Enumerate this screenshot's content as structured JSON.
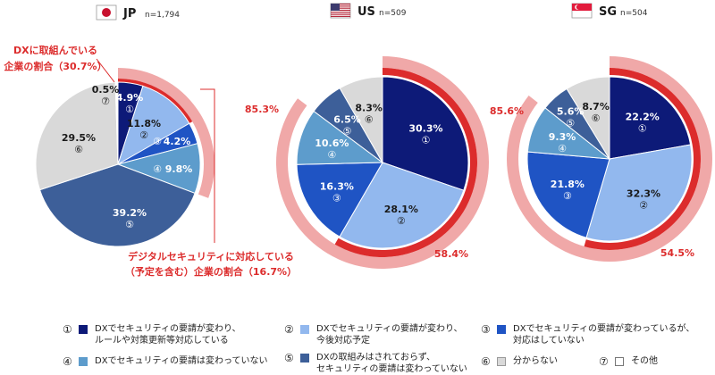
{
  "chart_data": [
    {
      "type": "pie",
      "country_code": "JP",
      "n_label": "n=1,794",
      "flag": "jp",
      "slices": [
        {
          "id": "1",
          "value": 4.9,
          "label": "4.9%",
          "num": "①"
        },
        {
          "id": "2",
          "value": 11.8,
          "label": "11.8%",
          "num": "②"
        },
        {
          "id": "3",
          "value": 4.2,
          "label": "4.2%",
          "num": "③"
        },
        {
          "id": "4",
          "value": 9.8,
          "label": "9.8%",
          "num": "④"
        },
        {
          "id": "5",
          "value": 39.2,
          "label": "39.2%",
          "num": "⑤"
        },
        {
          "id": "6",
          "value": 29.5,
          "label": "29.5%",
          "num": "⑥"
        },
        {
          "id": "7",
          "value": 0.5,
          "label": "0.5%",
          "num": "⑦"
        }
      ],
      "outer_arc": {
        "value": 30.7
      },
      "inner_arc": {
        "value": 16.7
      },
      "callout_outer": {
        "line1": "DXに取組んでいる",
        "line2": "企業の割合（30.7%）"
      },
      "callout_inner": {
        "line1": "デジタルセキュリティに対応している",
        "line2": "（予定を含む）企業の割合（16.7%）"
      }
    },
    {
      "type": "pie",
      "country_code": "US",
      "n_label": "n=509",
      "flag": "us",
      "slices": [
        {
          "id": "1",
          "value": 30.3,
          "label": "30.3%",
          "num": "①"
        },
        {
          "id": "2",
          "value": 28.1,
          "label": "28.1%",
          "num": "②"
        },
        {
          "id": "3",
          "value": 16.3,
          "label": "16.3%",
          "num": "③"
        },
        {
          "id": "4",
          "value": 10.6,
          "label": "10.6%",
          "num": "④"
        },
        {
          "id": "5",
          "value": 6.5,
          "label": "6.5%",
          "num": "⑤"
        },
        {
          "id": "6",
          "value": 8.3,
          "label": "8.3%",
          "num": "⑥"
        }
      ],
      "outer_arc": {
        "value": 85.3,
        "label": "85.3%"
      },
      "inner_arc": {
        "value": 58.4,
        "label": "58.4%"
      }
    },
    {
      "type": "pie",
      "country_code": "SG",
      "n_label": "n=504",
      "flag": "sg",
      "slices": [
        {
          "id": "1",
          "value": 22.2,
          "label": "22.2%",
          "num": "①"
        },
        {
          "id": "2",
          "value": 32.3,
          "label": "32.3%",
          "num": "②"
        },
        {
          "id": "3",
          "value": 21.8,
          "label": "21.8%",
          "num": "③"
        },
        {
          "id": "4",
          "value": 9.3,
          "label": "9.3%",
          "num": "④"
        },
        {
          "id": "5",
          "value": 5.6,
          "label": "5.6%",
          "num": "⑤"
        },
        {
          "id": "6",
          "value": 8.7,
          "label": "8.7%",
          "num": "⑥"
        }
      ],
      "outer_arc": {
        "value": 85.6,
        "label": "85.6%"
      },
      "inner_arc": {
        "value": 54.5,
        "label": "54.5%"
      }
    }
  ],
  "colors": {
    "1": "#0d1a78",
    "2": "#92b8ee",
    "3": "#1f54c4",
    "4": "#5d9ccc",
    "5": "#3d5f99",
    "6": "#d9d9d9",
    "7": "#ffffff",
    "arc_outer": "#f0a8a8",
    "arc_inner": "#dc2c2c",
    "callout_text": "#dc2c2c"
  },
  "legend": [
    {
      "id": "1",
      "num": "①",
      "text": "DXでセキュリティの要請が変わり、\nルールや対策更新等対応している"
    },
    {
      "id": "2",
      "num": "②",
      "text": "DXでセキュリティの要請が変わり、\n今後対応予定"
    },
    {
      "id": "3",
      "num": "③",
      "text": "DXでセキュリティの要請が変わっているが、\n対応はしていない"
    },
    {
      "id": "4",
      "num": "④",
      "text": "DXでセキュリティの要請は変わっていない"
    },
    {
      "id": "5",
      "num": "⑤",
      "text": "DXの取組みはされておらず、\nセキュリティの要請は変わっていない"
    },
    {
      "id": "6",
      "num": "⑥",
      "text": "分からない"
    },
    {
      "id": "7",
      "num": "⑦",
      "text": "その他"
    }
  ]
}
